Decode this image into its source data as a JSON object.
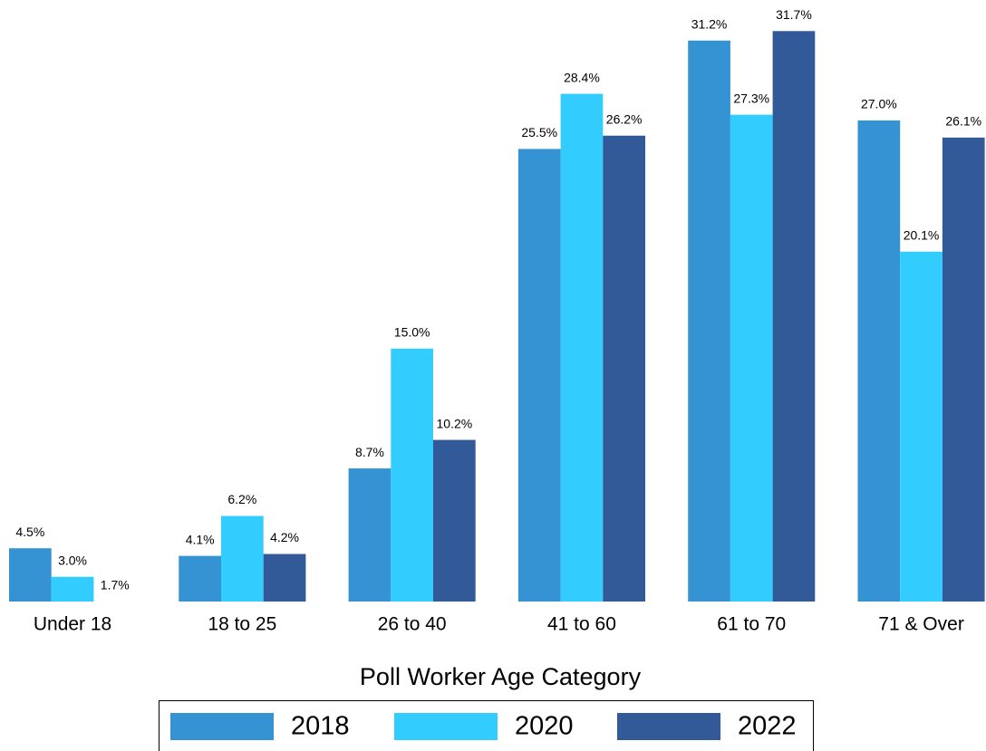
{
  "chart_data": {
    "type": "bar",
    "x_label": "Poll Worker Age Category",
    "categories": [
      "Under 18",
      "18 to 25",
      "26 to 40",
      "41 to 60",
      "61 to 70",
      "71 & Over"
    ],
    "series": [
      {
        "name": "2018",
        "color": "#3592d3",
        "values": [
          4.5,
          4.1,
          8.7,
          25.5,
          31.2,
          27.0
        ],
        "value_labels": [
          "4.5%",
          "4.1%",
          "8.7%",
          "25.5%",
          "31.2%",
          "27.0%"
        ]
      },
      {
        "name": "2020",
        "color": "#33ccff",
        "values": [
          3.0,
          6.2,
          15.0,
          28.4,
          27.3,
          20.1
        ],
        "value_labels": [
          "3.0%",
          "6.2%",
          "15.0%",
          "28.4%",
          "27.3%",
          "20.1%"
        ]
      },
      {
        "name": "2022",
        "color": "#335a98",
        "values": [
          1.7,
          4.2,
          10.2,
          26.2,
          31.7,
          26.1
        ],
        "value_labels": [
          "1.7%",
          "4.2%",
          "10.2%",
          "26.2%",
          "31.7%",
          "26.1%"
        ]
      }
    ],
    "ylim": [
      1.7,
      32
    ],
    "legend": "bottom"
  }
}
